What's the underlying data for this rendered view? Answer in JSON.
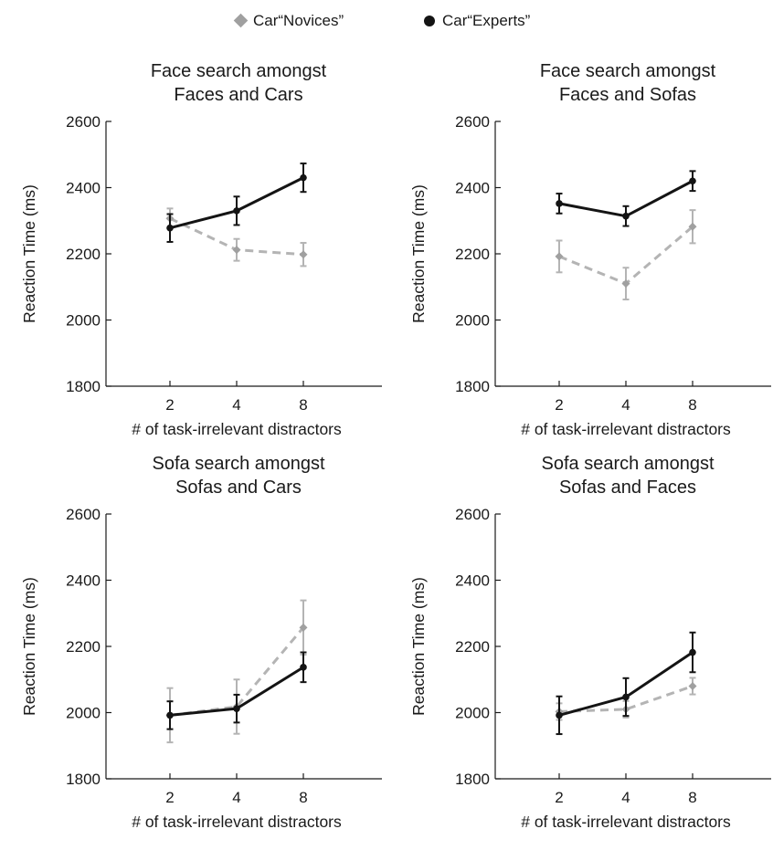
{
  "colors": {
    "novices": "#b4b4b4",
    "novices_marker": "#a0a0a0",
    "experts": "#141414",
    "axis": "#1a1a1a"
  },
  "legend": {
    "position": "top-center",
    "items": [
      {
        "label": "Car“Novices”",
        "marker": "diamond-icon",
        "color": "#a0a0a0"
      },
      {
        "label": "Car“Experts”",
        "marker": "circle-icon",
        "color": "#141414"
      }
    ]
  },
  "chart_data": [
    {
      "type": "line",
      "title": [
        "Face search amongst",
        "Faces and Cars"
      ],
      "xlabel": "# of task-irrelevant distractors",
      "ylabel": "Reaction Time (ms)",
      "categories": [
        "2",
        "4",
        "8"
      ],
      "ylim": [
        1800,
        2600
      ],
      "yticks": [
        1800,
        2000,
        2200,
        2400,
        2600
      ],
      "grid": false,
      "series": [
        {
          "name": "Car“Novices”",
          "style": "dashed",
          "marker": "diamond",
          "values": [
            2307,
            2212,
            2198
          ],
          "errors": [
            30,
            33,
            35
          ]
        },
        {
          "name": "Car“Experts”",
          "style": "solid",
          "marker": "circle",
          "values": [
            2278,
            2330,
            2430
          ],
          "errors": [
            42,
            43,
            43
          ]
        }
      ]
    },
    {
      "type": "line",
      "title": [
        "Face search amongst",
        "Faces and Sofas"
      ],
      "xlabel": "# of task-irrelevant distractors",
      "ylabel": "Reaction Time (ms)",
      "categories": [
        "2",
        "4",
        "8"
      ],
      "ylim": [
        1800,
        2600
      ],
      "yticks": [
        1800,
        2000,
        2200,
        2400,
        2600
      ],
      "grid": false,
      "series": [
        {
          "name": "Car“Novices”",
          "style": "dashed",
          "marker": "diamond",
          "values": [
            2192,
            2110,
            2282
          ],
          "errors": [
            48,
            48,
            50
          ]
        },
        {
          "name": "Car“Experts”",
          "style": "solid",
          "marker": "circle",
          "values": [
            2352,
            2314,
            2420
          ],
          "errors": [
            30,
            30,
            30
          ]
        }
      ]
    },
    {
      "type": "line",
      "title": [
        "Sofa search amongst",
        "Sofas and Cars"
      ],
      "xlabel": "# of task-irrelevant distractors",
      "ylabel": "Reaction Time (ms)",
      "categories": [
        "2",
        "4",
        "8"
      ],
      "ylim": [
        1800,
        2600
      ],
      "yticks": [
        1800,
        2000,
        2200,
        2400,
        2600
      ],
      "grid": false,
      "series": [
        {
          "name": "Car“Novices”",
          "style": "dashed",
          "marker": "diamond",
          "values": [
            1992,
            2018,
            2257
          ],
          "errors": [
            82,
            82,
            82
          ]
        },
        {
          "name": "Car“Experts”",
          "style": "solid",
          "marker": "circle",
          "values": [
            1992,
            2012,
            2137
          ],
          "errors": [
            42,
            42,
            45
          ]
        }
      ]
    },
    {
      "type": "line",
      "title": [
        "Sofa search amongst",
        "Sofas and Faces"
      ],
      "xlabel": "# of task-irrelevant distractors",
      "ylabel": "Reaction Time (ms)",
      "categories": [
        "2",
        "4",
        "8"
      ],
      "ylim": [
        1800,
        2600
      ],
      "yticks": [
        1800,
        2000,
        2200,
        2400,
        2600
      ],
      "grid": false,
      "series": [
        {
          "name": "Car“Novices”",
          "style": "dashed",
          "marker": "diamond",
          "values": [
            2003,
            2010,
            2080
          ],
          "errors": [
            25,
            25,
            25
          ]
        },
        {
          "name": "Car“Experts”",
          "style": "solid",
          "marker": "circle",
          "values": [
            1992,
            2047,
            2182
          ],
          "errors": [
            57,
            57,
            60
          ]
        }
      ]
    }
  ]
}
